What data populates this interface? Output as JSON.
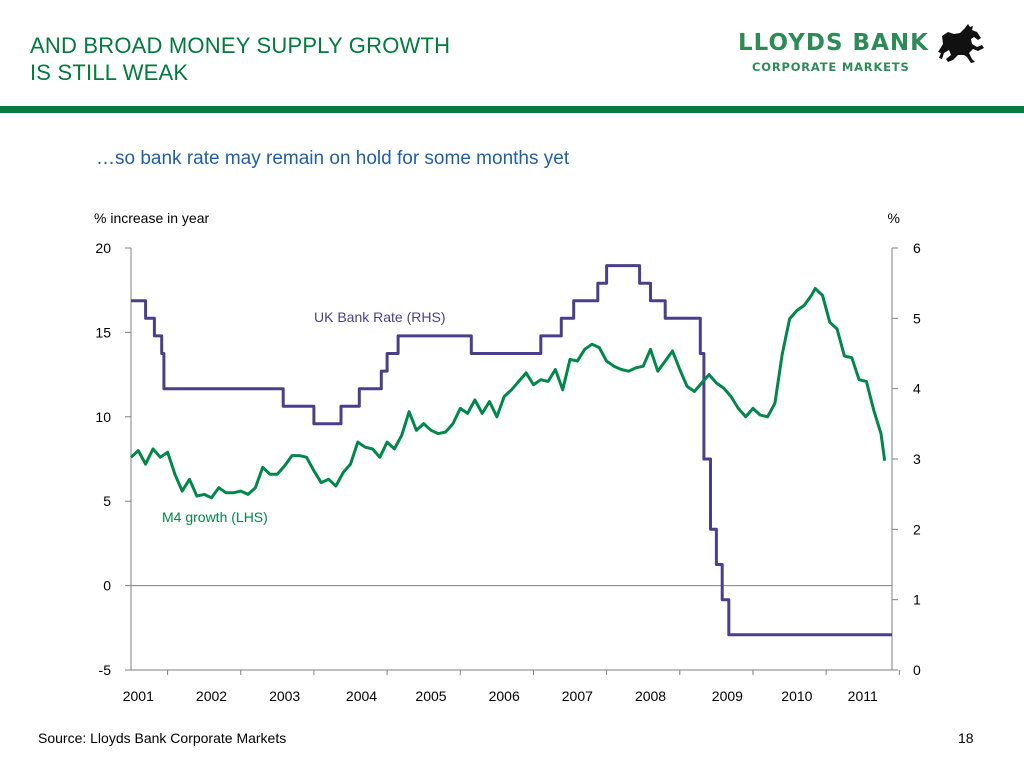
{
  "header": {
    "title_line1": "AND BROAD MONEY SUPPLY GROWTH",
    "title_line2": "IS STILL WEAK",
    "logo_name": "LLOYDS BANK",
    "logo_sub": "CORPORATE MARKETS"
  },
  "colors": {
    "brand_green": "#007a3d",
    "m4_series": "#00874a",
    "bank_rate_series": "#4b3f8a"
  },
  "subtitle": "…so bank rate may remain on hold for some months yet",
  "footer": {
    "source": "Source: Lloyds Bank Corporate Markets",
    "page_number": "18"
  },
  "chart_data": {
    "type": "line",
    "subtitle": "…so bank rate may remain on hold for some months yet",
    "ylabel_left": "% increase in year",
    "ylabel_right": "%",
    "ylim_left": [
      -5,
      20
    ],
    "yticks_left": [
      -5,
      0,
      5,
      10,
      15,
      20
    ],
    "ylim_right": [
      0,
      6
    ],
    "yticks_right": [
      0,
      1,
      2,
      3,
      4,
      5,
      6
    ],
    "x_range": [
      2001,
      2011.4
    ],
    "x_tick_labels": [
      "2001",
      "2002",
      "2003",
      "2004",
      "2005",
      "2006",
      "2007",
      "2008",
      "2009",
      "2010",
      "2011"
    ],
    "x_tick_positions": [
      2001.1,
      2002.1,
      2003.1,
      2004.15,
      2005.1,
      2006.1,
      2007.1,
      2008.1,
      2009.15,
      2010.1,
      2011.0
    ],
    "gridlines": false,
    "zero_line": true,
    "annotations": [
      {
        "text": "UK Bank Rate (RHS)",
        "series": "UK Bank Rate (RHS)"
      },
      {
        "text": "M4 growth (LHS)",
        "series": "M4 growth (LHS)"
      }
    ],
    "series": [
      {
        "name": "UK Bank Rate (RHS)",
        "axis": "right",
        "shape": "step",
        "points": [
          [
            2001.0,
            5.25
          ],
          [
            2001.2,
            5.0
          ],
          [
            2001.32,
            4.75
          ],
          [
            2001.42,
            4.5
          ],
          [
            2001.45,
            4.0
          ],
          [
            2003.08,
            3.75
          ],
          [
            2003.5,
            3.5
          ],
          [
            2003.87,
            3.75
          ],
          [
            2004.12,
            4.0
          ],
          [
            2004.42,
            4.25
          ],
          [
            2004.5,
            4.5
          ],
          [
            2004.65,
            4.75
          ],
          [
            2005.65,
            4.5
          ],
          [
            2006.6,
            4.75
          ],
          [
            2006.88,
            5.0
          ],
          [
            2007.05,
            5.25
          ],
          [
            2007.38,
            5.5
          ],
          [
            2007.5,
            5.75
          ],
          [
            2007.95,
            5.5
          ],
          [
            2008.1,
            5.25
          ],
          [
            2008.3,
            5.0
          ],
          [
            2008.78,
            4.5
          ],
          [
            2008.83,
            3.0
          ],
          [
            2008.92,
            2.0
          ],
          [
            2009.0,
            1.5
          ],
          [
            2009.08,
            1.0
          ],
          [
            2009.17,
            0.5
          ],
          [
            2011.4,
            0.5
          ]
        ]
      },
      {
        "name": "M4 growth (LHS)",
        "axis": "left",
        "shape": "line",
        "points": [
          [
            2001.0,
            7.6
          ],
          [
            2001.1,
            8.0
          ],
          [
            2001.2,
            7.2
          ],
          [
            2001.3,
            8.1
          ],
          [
            2001.4,
            7.6
          ],
          [
            2001.5,
            7.9
          ],
          [
            2001.6,
            6.6
          ],
          [
            2001.7,
            5.6
          ],
          [
            2001.8,
            6.3
          ],
          [
            2001.9,
            5.3
          ],
          [
            2002.0,
            5.4
          ],
          [
            2002.1,
            5.2
          ],
          [
            2002.2,
            5.8
          ],
          [
            2002.3,
            5.5
          ],
          [
            2002.4,
            5.5
          ],
          [
            2002.5,
            5.6
          ],
          [
            2002.6,
            5.4
          ],
          [
            2002.7,
            5.8
          ],
          [
            2002.8,
            7.0
          ],
          [
            2002.9,
            6.6
          ],
          [
            2003.0,
            6.6
          ],
          [
            2003.1,
            7.1
          ],
          [
            2003.2,
            7.7
          ],
          [
            2003.3,
            7.7
          ],
          [
            2003.4,
            7.6
          ],
          [
            2003.5,
            6.8
          ],
          [
            2003.6,
            6.1
          ],
          [
            2003.7,
            6.3
          ],
          [
            2003.8,
            5.9
          ],
          [
            2003.9,
            6.7
          ],
          [
            2004.0,
            7.2
          ],
          [
            2004.1,
            8.5
          ],
          [
            2004.2,
            8.2
          ],
          [
            2004.3,
            8.1
          ],
          [
            2004.4,
            7.6
          ],
          [
            2004.5,
            8.5
          ],
          [
            2004.6,
            8.1
          ],
          [
            2004.7,
            8.9
          ],
          [
            2004.8,
            10.3
          ],
          [
            2004.9,
            9.2
          ],
          [
            2005.0,
            9.6
          ],
          [
            2005.1,
            9.2
          ],
          [
            2005.2,
            9.0
          ],
          [
            2005.3,
            9.1
          ],
          [
            2005.4,
            9.6
          ],
          [
            2005.5,
            10.5
          ],
          [
            2005.6,
            10.2
          ],
          [
            2005.7,
            11.0
          ],
          [
            2005.8,
            10.2
          ],
          [
            2005.9,
            10.9
          ],
          [
            2006.0,
            10.0
          ],
          [
            2006.1,
            11.2
          ],
          [
            2006.2,
            11.6
          ],
          [
            2006.3,
            12.1
          ],
          [
            2006.4,
            12.6
          ],
          [
            2006.5,
            11.9
          ],
          [
            2006.6,
            12.2
          ],
          [
            2006.7,
            12.1
          ],
          [
            2006.8,
            12.8
          ],
          [
            2006.9,
            11.6
          ],
          [
            2007.0,
            13.4
          ],
          [
            2007.1,
            13.3
          ],
          [
            2007.2,
            14.0
          ],
          [
            2007.3,
            14.3
          ],
          [
            2007.4,
            14.1
          ],
          [
            2007.5,
            13.3
          ],
          [
            2007.6,
            13.0
          ],
          [
            2007.7,
            12.8
          ],
          [
            2007.8,
            12.7
          ],
          [
            2007.9,
            12.9
          ],
          [
            2008.0,
            13.0
          ],
          [
            2008.1,
            14.0
          ],
          [
            2008.2,
            12.7
          ],
          [
            2008.3,
            13.3
          ],
          [
            2008.4,
            13.9
          ],
          [
            2008.5,
            12.8
          ],
          [
            2008.6,
            11.8
          ],
          [
            2008.7,
            11.5
          ],
          [
            2008.8,
            12.0
          ],
          [
            2008.9,
            12.5
          ],
          [
            2009.0,
            12.0
          ],
          [
            2009.1,
            11.7
          ],
          [
            2009.2,
            11.2
          ],
          [
            2009.3,
            10.5
          ],
          [
            2009.4,
            10.0
          ],
          [
            2009.5,
            10.5
          ],
          [
            2009.6,
            10.1
          ],
          [
            2009.7,
            10.0
          ],
          [
            2009.8,
            10.8
          ],
          [
            2009.9,
            13.7
          ],
          [
            2010.0,
            15.8
          ],
          [
            2010.1,
            16.3
          ],
          [
            2010.2,
            16.6
          ],
          [
            2010.3,
            17.2
          ],
          [
            2010.35,
            17.6
          ],
          [
            2010.45,
            17.2
          ],
          [
            2010.55,
            15.6
          ],
          [
            2010.65,
            15.2
          ],
          [
            2010.75,
            13.6
          ],
          [
            2010.85,
            13.5
          ],
          [
            2010.95,
            12.2
          ],
          [
            2011.05,
            12.1
          ],
          [
            2011.15,
            10.4
          ],
          [
            2011.25,
            9.0
          ],
          [
            2011.3,
            7.4
          ]
        ]
      }
    ]
  }
}
